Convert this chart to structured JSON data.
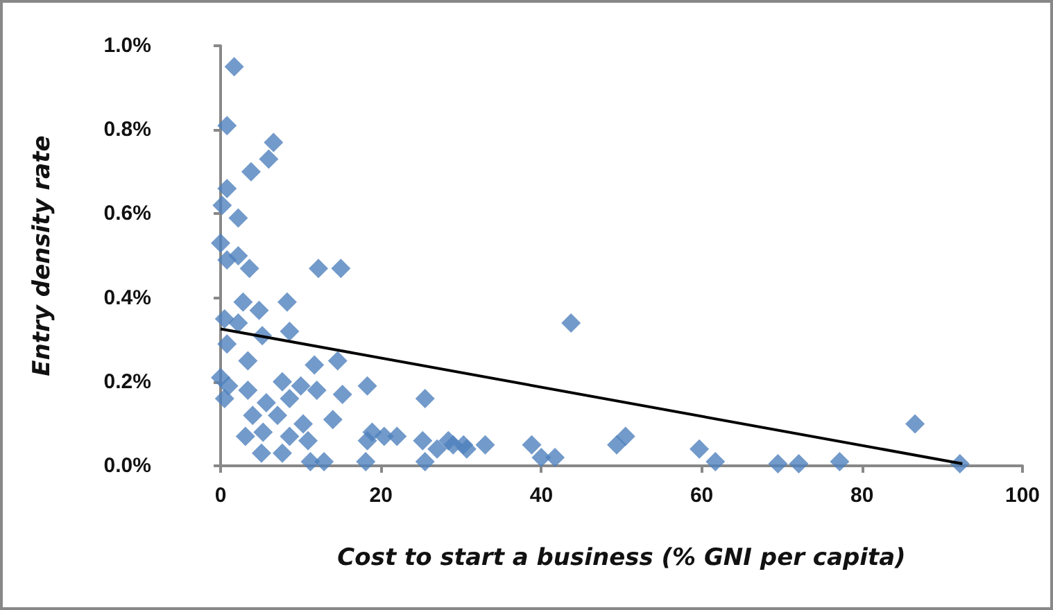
{
  "chart_data": {
    "type": "scatter",
    "xlabel": "Cost to start a business (% GNI per capita)",
    "ylabel": "Entry density rate",
    "xlim": [
      0,
      100
    ],
    "xticks": [
      0,
      20,
      40,
      60,
      80,
      100
    ],
    "ylim": [
      0,
      1
    ],
    "yticks": [
      {
        "value": 0,
        "label": "0.0%"
      },
      {
        "value": 0.2,
        "label": "0.2%"
      },
      {
        "value": 0.4,
        "label": "0.4%"
      },
      {
        "value": 0.6,
        "label": "0.6%"
      },
      {
        "value": 0.8,
        "label": "0.8%"
      },
      {
        "value": 1,
        "label": "1.0%"
      }
    ],
    "grid": false,
    "marker": "diamond",
    "series": [
      {
        "color": "#4f81bd",
        "x": [
          1.7,
          0.8,
          6.6,
          6.0,
          3.8,
          0.8,
          0.2,
          2.2,
          0,
          0.8,
          2.2,
          3.6,
          12.2,
          15,
          8.3,
          2.8,
          4.8,
          0.5,
          2.2,
          5.2,
          8.6,
          0.8,
          3.4,
          11.7,
          14.6,
          0,
          1.0,
          3.4,
          7.7,
          10,
          12,
          18.3,
          15.2,
          0.5,
          25.5,
          5.7,
          8.6,
          4.0,
          7.1,
          14,
          10.3,
          3.1,
          5.3,
          8.6,
          10.9,
          18.9,
          20.4,
          18.3,
          25.2,
          28.4,
          5.1,
          7.7,
          11.2,
          12.9,
          18.1,
          25.5,
          30.3,
          22,
          27,
          29,
          30.7,
          33,
          38.8,
          40,
          41.7,
          43.7,
          49.4,
          50.5,
          59.7,
          61.7,
          69.5,
          72.1,
          77.2,
          86.6,
          92.2
        ],
        "values": [
          0.95,
          0.81,
          0.77,
          0.73,
          0.7,
          0.66,
          0.62,
          0.59,
          0.53,
          0.49,
          0.5,
          0.47,
          0.47,
          0.47,
          0.39,
          0.39,
          0.37,
          0.35,
          0.34,
          0.31,
          0.32,
          0.29,
          0.25,
          0.24,
          0.25,
          0.21,
          0.19,
          0.18,
          0.2,
          0.19,
          0.18,
          0.19,
          0.17,
          0.16,
          0.16,
          0.15,
          0.16,
          0.12,
          0.12,
          0.11,
          0.1,
          0.07,
          0.08,
          0.07,
          0.06,
          0.08,
          0.07,
          0.06,
          0.06,
          0.06,
          0.03,
          0.03,
          0.01,
          0.01,
          0.01,
          0.01,
          0.05,
          0.07,
          0.04,
          0.05,
          0.04,
          0.05,
          0.05,
          0.02,
          0.02,
          0.34,
          0.05,
          0.07,
          0.04,
          0.01,
          0.005,
          0.005,
          0.01,
          0.1,
          0.005
        ]
      },
      {
        "type": "line",
        "color": "#000000",
        "x": [
          0,
          92.5
        ],
        "values": [
          0.326,
          0.005
        ],
        "marker": "none"
      }
    ]
  }
}
